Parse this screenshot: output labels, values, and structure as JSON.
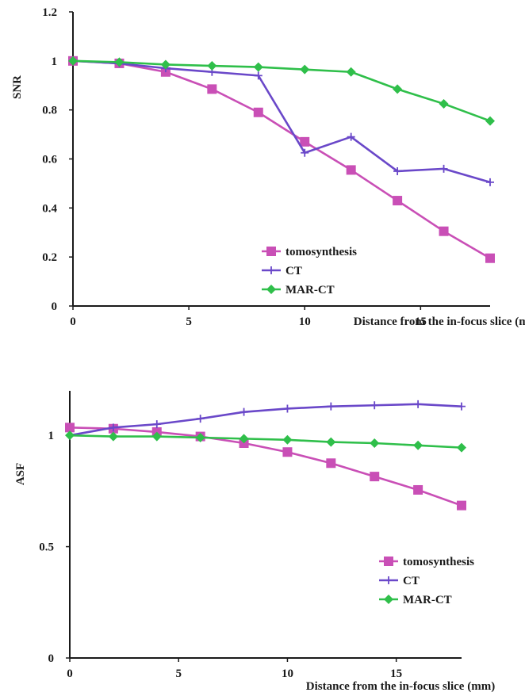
{
  "chart_data": [
    {
      "type": "line",
      "title": "",
      "xlabel": "Distance from the in-focus slice (mm)",
      "ylabel": "SNR",
      "xlim": [
        0,
        18
      ],
      "ylim": [
        0,
        1.2
      ],
      "x_ticks": [
        0,
        5,
        10,
        15
      ],
      "y_ticks": [
        0,
        0.2,
        0.4,
        0.6,
        0.8,
        1,
        1.2
      ],
      "x_tick_labels": [
        "0",
        "5",
        "10",
        "15"
      ],
      "y_tick_labels": [
        "0",
        "0.2",
        "0.4",
        "0.6",
        "0.8",
        "1",
        "1.2"
      ],
      "grid": false,
      "legend_position": "bottom-right",
      "x": [
        0,
        2,
        4,
        6,
        8,
        10,
        12,
        14,
        16,
        18
      ],
      "series": [
        {
          "name": "tomosynthesis",
          "color": "#c94fb6",
          "marker": "square",
          "values": [
            1.0,
            0.99,
            0.955,
            0.885,
            0.79,
            0.67,
            0.555,
            0.43,
            0.305,
            0.195
          ]
        },
        {
          "name": "CT",
          "color": "#6a48c9",
          "marker": "plus",
          "values": [
            1.0,
            0.99,
            0.97,
            0.955,
            0.94,
            0.625,
            0.69,
            0.55,
            0.56,
            0.505
          ]
        },
        {
          "name": "MAR-CT",
          "color": "#2fbf4a",
          "marker": "diamond",
          "values": [
            1.0,
            0.995,
            0.985,
            0.98,
            0.975,
            0.965,
            0.955,
            0.885,
            0.825,
            0.755
          ]
        }
      ]
    },
    {
      "type": "line",
      "title": "",
      "xlabel": "Distance from the in-focus slice (mm)",
      "ylabel": "ASF",
      "xlim": [
        0,
        18
      ],
      "ylim": [
        0,
        1.2
      ],
      "x_ticks": [
        0,
        5,
        10,
        15
      ],
      "y_ticks": [
        0,
        0.5,
        1
      ],
      "x_tick_labels": [
        "0",
        "5",
        "10",
        "15"
      ],
      "y_tick_labels": [
        "0",
        "0.5",
        "1"
      ],
      "grid": false,
      "legend_position": "bottom-right",
      "x": [
        0,
        2,
        4,
        6,
        8,
        10,
        12,
        14,
        16,
        18
      ],
      "series": [
        {
          "name": "tomosynthesis",
          "color": "#c94fb6",
          "marker": "square",
          "values": [
            1.035,
            1.03,
            1.015,
            0.995,
            0.965,
            0.925,
            0.875,
            0.815,
            0.755,
            0.685
          ]
        },
        {
          "name": "CT",
          "color": "#6a48c9",
          "marker": "plus",
          "values": [
            1.0,
            1.035,
            1.05,
            1.075,
            1.105,
            1.12,
            1.13,
            1.135,
            1.14,
            1.13
          ]
        },
        {
          "name": "MAR-CT",
          "color": "#2fbf4a",
          "marker": "diamond",
          "values": [
            1.0,
            0.995,
            0.995,
            0.99,
            0.985,
            0.98,
            0.97,
            0.965,
            0.955,
            0.945
          ]
        }
      ]
    }
  ]
}
